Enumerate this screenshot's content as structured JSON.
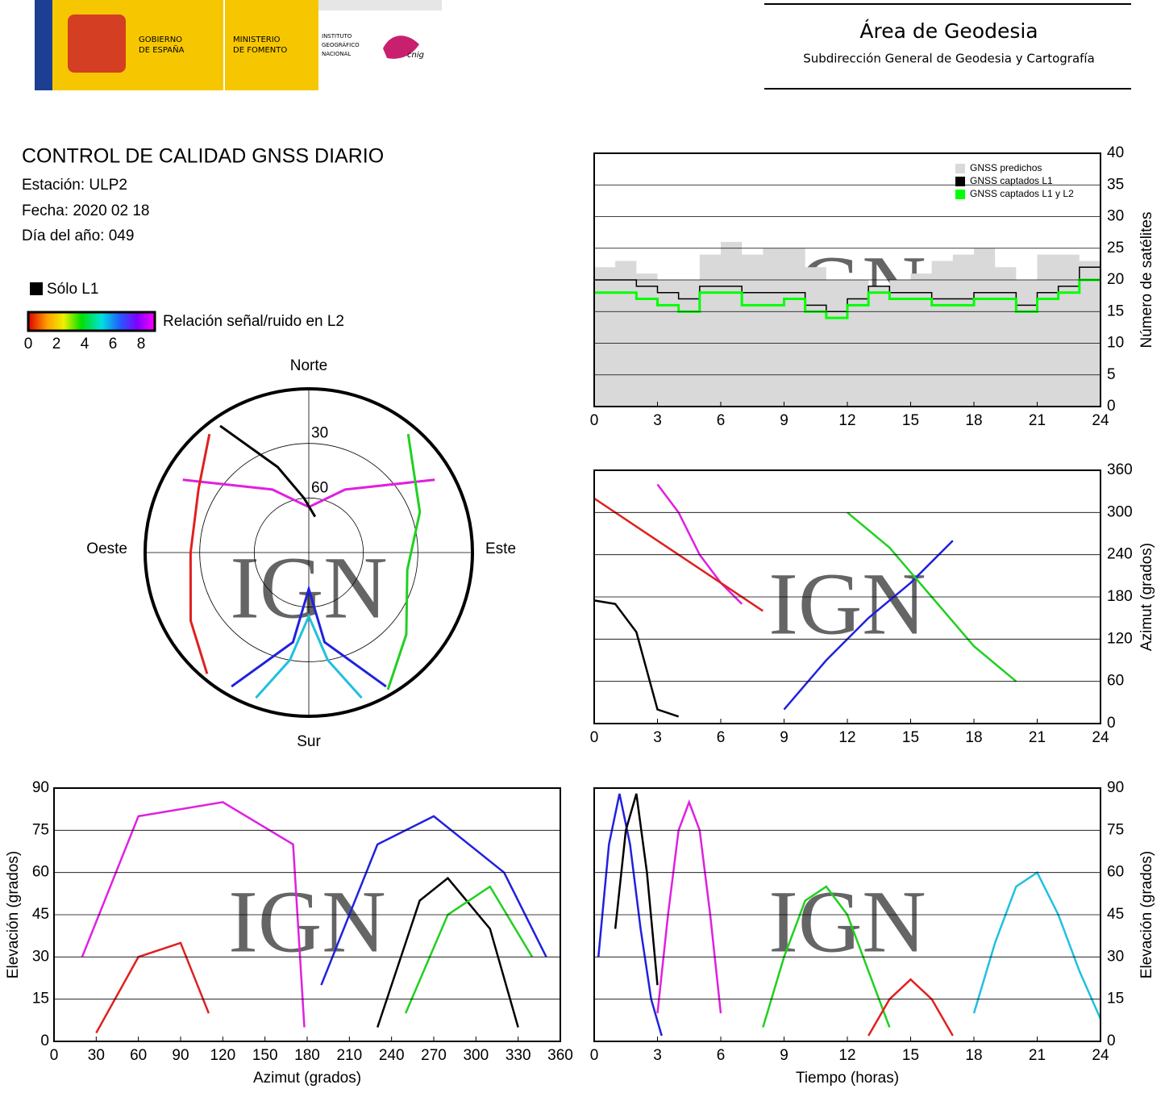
{
  "header": {
    "gov": [
      "GOBIERNO",
      "DE ESPAÑA"
    ],
    "ministry": [
      "MINISTERIO",
      "DE FOMENTO"
    ],
    "institute": [
      "INSTITUTO",
      "GEOGRÁFICO",
      "NACIONAL"
    ],
    "cnig": "cnig",
    "title": "Área de Geodesia",
    "subtitle": "Subdirección General de Geodesia y Cartografía"
  },
  "report": {
    "title": "CONTROL DE CALIDAD GNSS DIARIO",
    "station": "Estación: ULP2",
    "date": "Fecha: 2020 02 18",
    "doy": "Día del año: 049"
  },
  "chart_data": [
    {
      "type": "polar",
      "watermark": "IGN",
      "legend_l1": "Sólo L1",
      "colorbar_label": "Relación señal/ruido en L2",
      "colorbar_ticks": [
        0,
        2,
        4,
        6,
        8
      ],
      "directions": [
        "Norte",
        "Este",
        "Sur",
        "Oeste"
      ],
      "rings": [
        30,
        60
      ],
      "series": [
        {
          "color": "#e020e0",
          "azimuth": [
            300,
            330,
            0,
            30,
            60
          ],
          "elevation": [
            10,
            50,
            65,
            50,
            10
          ]
        },
        {
          "color": "#2020e0",
          "azimuth": [
            210,
            190,
            180,
            170,
            150
          ],
          "elevation": [
            5,
            40,
            70,
            40,
            5
          ]
        },
        {
          "color": "#e02020",
          "azimuth": [
            320,
            300,
            270,
            240,
            220
          ],
          "elevation": [
            5,
            20,
            25,
            15,
            3
          ]
        },
        {
          "color": "#20d020",
          "azimuth": [
            40,
            70,
            100,
            130,
            150
          ],
          "elevation": [
            5,
            25,
            35,
            20,
            3
          ]
        },
        {
          "color": "#20c0e0",
          "azimuth": [
            160,
            170,
            180,
            190,
            200
          ],
          "elevation": [
            5,
            30,
            55,
            30,
            5
          ]
        },
        {
          "color": "#000000",
          "azimuth": [
            325,
            340,
            355,
            10
          ],
          "elevation": [
            5,
            40,
            60,
            70
          ]
        }
      ]
    },
    {
      "type": "step",
      "watermark": "IGN",
      "ylabel": "Número de satélites",
      "x": [
        0,
        1,
        2,
        3,
        4,
        5,
        6,
        7,
        8,
        9,
        10,
        11,
        12,
        13,
        14,
        15,
        16,
        17,
        18,
        19,
        20,
        21,
        22,
        23,
        24
      ],
      "xlim": [
        0,
        24
      ],
      "xticks": [
        0,
        3,
        6,
        9,
        12,
        15,
        18,
        21,
        24
      ],
      "ylim": [
        0,
        40
      ],
      "yticks": [
        0,
        5,
        10,
        15,
        20,
        25,
        30,
        35,
        40
      ],
      "series": [
        {
          "name": "GNSS predichos",
          "color": "#d9d9d9",
          "values": [
            22,
            23,
            21,
            20,
            20,
            24,
            26,
            24,
            25,
            25,
            22,
            20,
            20,
            19,
            20,
            21,
            23,
            24,
            25,
            22,
            20,
            24,
            24,
            23,
            22
          ]
        },
        {
          "name": "GNSS captados L1",
          "color": "#000000",
          "values": [
            20,
            20,
            19,
            18,
            17,
            19,
            19,
            18,
            18,
            18,
            16,
            15,
            17,
            19,
            18,
            18,
            17,
            17,
            18,
            18,
            16,
            18,
            19,
            22,
            22
          ]
        },
        {
          "name": "GNSS captados L1 y L2",
          "color": "#00ff00",
          "values": [
            18,
            18,
            17,
            16,
            15,
            18,
            18,
            16,
            16,
            17,
            15,
            14,
            16,
            18,
            17,
            17,
            16,
            16,
            17,
            17,
            15,
            17,
            18,
            20,
            20
          ]
        }
      ]
    },
    {
      "type": "line",
      "watermark": "IGN",
      "ylabel": "Azimut (grados)",
      "xlim": [
        0,
        24
      ],
      "xticks": [
        0,
        3,
        6,
        9,
        12,
        15,
        18,
        21,
        24
      ],
      "ylim": [
        0,
        360
      ],
      "yticks": [
        0,
        60,
        120,
        180,
        240,
        300,
        360
      ],
      "series": [
        {
          "color": "#e020e0",
          "x": [
            3,
            4,
            5,
            6,
            7
          ],
          "values": [
            340,
            300,
            240,
            200,
            170
          ]
        },
        {
          "color": "#2020e0",
          "x": [
            9,
            11,
            13,
            15,
            17
          ],
          "values": [
            20,
            90,
            150,
            200,
            260
          ]
        },
        {
          "color": "#e02020",
          "x": [
            0,
            2,
            4,
            6,
            8
          ],
          "values": [
            320,
            280,
            240,
            200,
            160
          ]
        },
        {
          "color": "#20d020",
          "x": [
            12,
            14,
            16,
            18,
            20
          ],
          "values": [
            300,
            250,
            180,
            110,
            60
          ]
        },
        {
          "color": "#000000",
          "x": [
            0,
            1,
            2,
            3,
            4
          ],
          "values": [
            175,
            170,
            130,
            20,
            10
          ]
        }
      ]
    },
    {
      "type": "line",
      "watermark": "IGN",
      "xlabel": "Azimut (grados)",
      "ylabel": "Elevación (grados)",
      "yaxis_side": "left",
      "xlim": [
        0,
        360
      ],
      "xticks": [
        0,
        30,
        60,
        90,
        120,
        150,
        180,
        210,
        240,
        270,
        300,
        330,
        360
      ],
      "ylim": [
        0,
        90
      ],
      "yticks": [
        0,
        15,
        30,
        45,
        60,
        75,
        90
      ],
      "series": [
        {
          "color": "#e020e0",
          "x": [
            20,
            60,
            120,
            170,
            178
          ],
          "values": [
            30,
            80,
            85,
            70,
            5
          ]
        },
        {
          "color": "#2020e0",
          "x": [
            190,
            230,
            270,
            320,
            350
          ],
          "values": [
            20,
            70,
            80,
            60,
            30
          ]
        },
        {
          "color": "#000000",
          "x": [
            230,
            260,
            280,
            310,
            330
          ],
          "values": [
            5,
            50,
            58,
            40,
            5
          ]
        },
        {
          "color": "#e02020",
          "x": [
            30,
            60,
            90,
            110
          ],
          "values": [
            3,
            30,
            35,
            10
          ]
        },
        {
          "color": "#20d020",
          "x": [
            250,
            280,
            310,
            340
          ],
          "values": [
            10,
            45,
            55,
            30
          ]
        }
      ]
    },
    {
      "type": "line",
      "watermark": "IGN",
      "xlabel": "Tiempo (horas)",
      "ylabel": "Elevación (grados)",
      "xlim": [
        0,
        24
      ],
      "xticks": [
        0,
        3,
        6,
        9,
        12,
        15,
        18,
        21,
        24
      ],
      "ylim": [
        0,
        90
      ],
      "yticks": [
        0,
        15,
        30,
        45,
        60,
        75,
        90
      ],
      "series": [
        {
          "color": "#e020e0",
          "x": [
            3,
            3.5,
            4,
            4.5,
            5,
            5.5,
            6
          ],
          "values": [
            10,
            45,
            75,
            85,
            75,
            45,
            10
          ]
        },
        {
          "color": "#2020e0",
          "x": [
            0.2,
            0.7,
            1.2,
            1.7,
            2.2,
            2.7,
            3.2
          ],
          "values": [
            30,
            70,
            88,
            70,
            40,
            15,
            2
          ]
        },
        {
          "color": "#000000",
          "x": [
            1,
            1.5,
            2,
            2.5,
            3
          ],
          "values": [
            40,
            75,
            88,
            60,
            20
          ]
        },
        {
          "color": "#20d020",
          "x": [
            8,
            9,
            10,
            11,
            12,
            13,
            14
          ],
          "values": [
            5,
            30,
            50,
            55,
            45,
            25,
            5
          ]
        },
        {
          "color": "#e02020",
          "x": [
            13,
            14,
            15,
            16,
            17
          ],
          "values": [
            2,
            15,
            22,
            15,
            2
          ]
        },
        {
          "color": "#20c0e0",
          "x": [
            18,
            19,
            20,
            21,
            22,
            23,
            24
          ],
          "values": [
            10,
            35,
            55,
            60,
            45,
            25,
            8
          ]
        }
      ]
    }
  ]
}
